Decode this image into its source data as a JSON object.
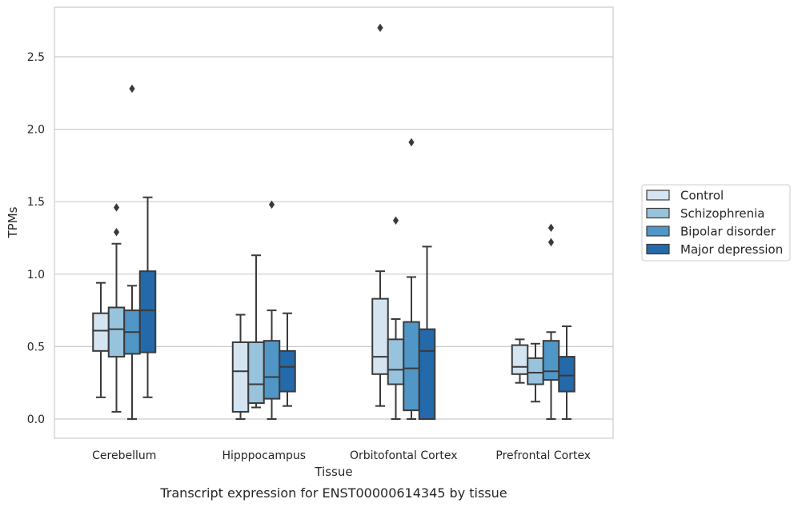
{
  "chart_data": {
    "type": "box",
    "title": "",
    "caption": "Transcript expression for ENST00000614345 by tissue",
    "xlabel": "Tissue",
    "ylabel": "TPMs",
    "ylim": [
      -0.13,
      2.85
    ],
    "yticks": [
      "0.0",
      "0.5",
      "1.0",
      "1.5",
      "2.0",
      "2.5"
    ],
    "grid": "horizontal",
    "legend_position": "right",
    "categories": [
      "Cerebellum",
      "Hipppocampus",
      "Orbitofontal Cortex",
      "Prefrontal Cortex"
    ],
    "series": [
      {
        "name": "Control",
        "color": "#d5e4f1",
        "boxes": [
          {
            "whisker_low": 0.15,
            "q1": 0.47,
            "median": 0.61,
            "q3": 0.73,
            "whisker_high": 0.94,
            "outliers": []
          },
          {
            "whisker_low": 0.0,
            "q1": 0.05,
            "median": 0.33,
            "q3": 0.53,
            "whisker_high": 0.72,
            "outliers": []
          },
          {
            "whisker_low": 0.09,
            "q1": 0.31,
            "median": 0.43,
            "q3": 0.83,
            "whisker_high": 1.02,
            "outliers": [
              2.7
            ]
          },
          {
            "whisker_low": 0.25,
            "q1": 0.31,
            "median": 0.36,
            "q3": 0.51,
            "whisker_high": 0.55,
            "outliers": []
          }
        ]
      },
      {
        "name": "Schizophrenia",
        "color": "#97c3dd",
        "boxes": [
          {
            "whisker_low": 0.05,
            "q1": 0.43,
            "median": 0.62,
            "q3": 0.77,
            "whisker_high": 1.21,
            "outliers": [
              1.29,
              1.46
            ]
          },
          {
            "whisker_low": 0.08,
            "q1": 0.11,
            "median": 0.24,
            "q3": 0.53,
            "whisker_high": 1.13,
            "outliers": []
          },
          {
            "whisker_low": 0.0,
            "q1": 0.24,
            "median": 0.34,
            "q3": 0.55,
            "whisker_high": 0.69,
            "outliers": [
              1.37
            ]
          },
          {
            "whisker_low": 0.12,
            "q1": 0.24,
            "median": 0.32,
            "q3": 0.42,
            "whisker_high": 0.52,
            "outliers": []
          }
        ]
      },
      {
        "name": "Bipolar disorder",
        "color": "#5096c6",
        "boxes": [
          {
            "whisker_low": 0.0,
            "q1": 0.45,
            "median": 0.6,
            "q3": 0.75,
            "whisker_high": 0.92,
            "outliers": [
              2.28
            ]
          },
          {
            "whisker_low": 0.0,
            "q1": 0.14,
            "median": 0.29,
            "q3": 0.54,
            "whisker_high": 0.75,
            "outliers": [
              1.48
            ]
          },
          {
            "whisker_low": 0.0,
            "q1": 0.06,
            "median": 0.35,
            "q3": 0.67,
            "whisker_high": 0.98,
            "outliers": [
              1.91
            ]
          },
          {
            "whisker_low": 0.0,
            "q1": 0.27,
            "median": 0.33,
            "q3": 0.54,
            "whisker_high": 0.6,
            "outliers": [
              1.22,
              1.32
            ]
          }
        ]
      },
      {
        "name": "Major depression",
        "color": "#2469aa",
        "boxes": [
          {
            "whisker_low": 0.15,
            "q1": 0.46,
            "median": 0.75,
            "q3": 1.02,
            "whisker_high": 1.53,
            "outliers": []
          },
          {
            "whisker_low": 0.09,
            "q1": 0.19,
            "median": 0.36,
            "q3": 0.47,
            "whisker_high": 0.73,
            "outliers": []
          },
          {
            "whisker_low": 0.0,
            "q1": 0.0,
            "median": 0.47,
            "q3": 0.62,
            "whisker_high": 1.19,
            "outliers": []
          },
          {
            "whisker_low": 0.0,
            "q1": 0.19,
            "median": 0.3,
            "q3": 0.43,
            "whisker_high": 0.64,
            "outliers": []
          }
        ]
      }
    ],
    "colors": {
      "axes_frame": "#cccccc",
      "grid": "#cccccc",
      "box_edge": "#3a3a3a",
      "text": "#262626",
      "legend_frame": "#cccccc"
    }
  }
}
